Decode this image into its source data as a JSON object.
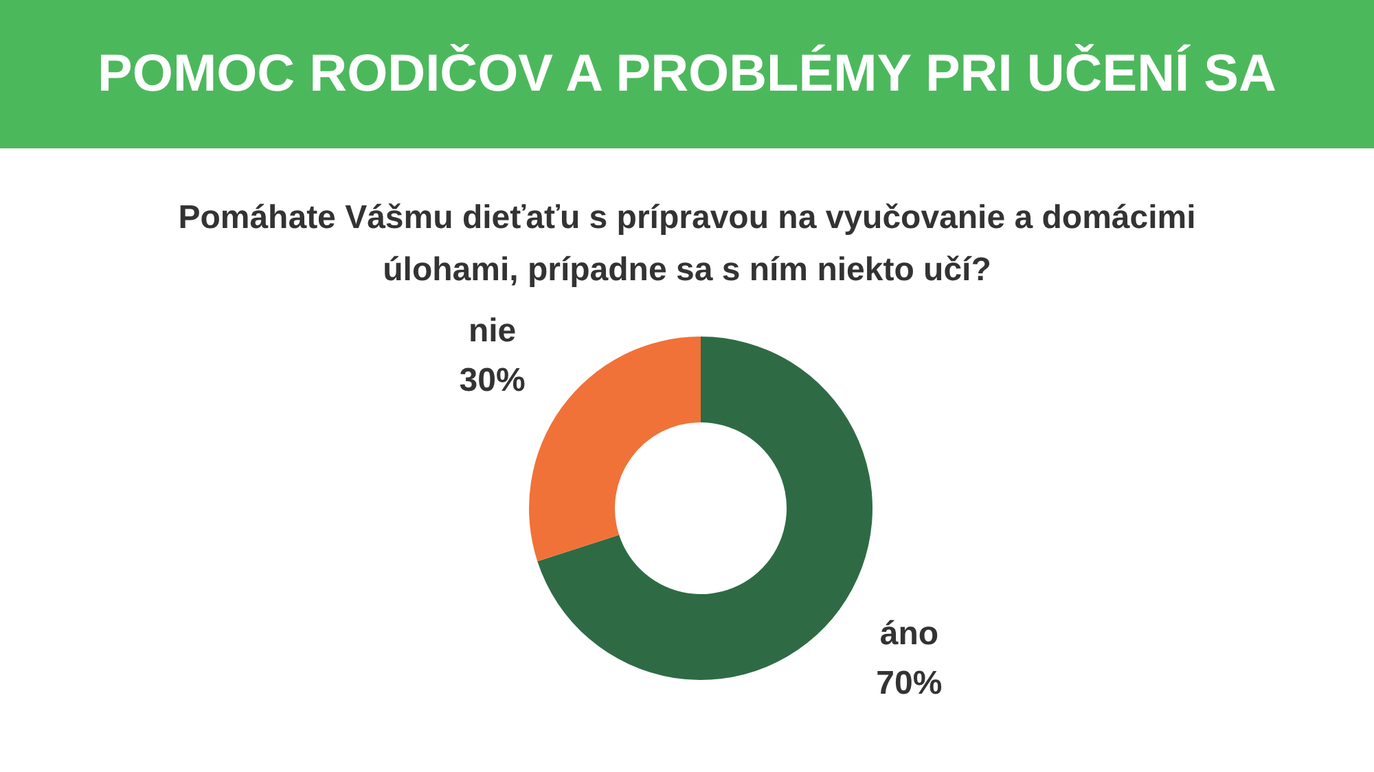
{
  "chart_data": {
    "type": "donut",
    "title": "POMOC RODIČOV A PROBLÉMY PRI UČENÍ SA",
    "subtitle": "Pomáhate Vášmu dieťaťu s prípravou na vyučovanie a domácimi úlohami, prípadne sa s ním niekto učí?",
    "categories": [
      "áno",
      "nie"
    ],
    "values": [
      70,
      30
    ],
    "value_labels": [
      "70%",
      "30%"
    ],
    "colors": [
      "#2e6b45",
      "#f07238"
    ],
    "legend": false
  }
}
